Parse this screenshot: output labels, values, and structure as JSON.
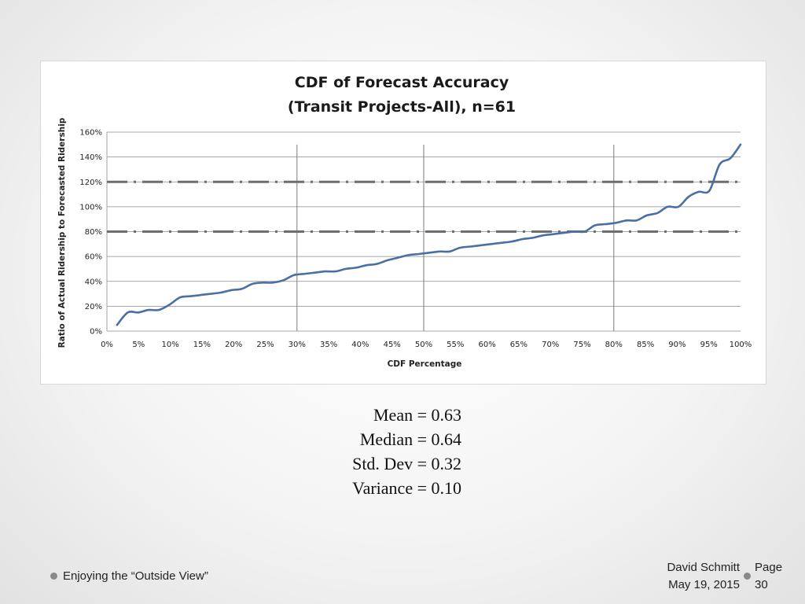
{
  "chart_data": {
    "type": "line",
    "title": [
      "CDF of Forecast Accuracy",
      "(Transit Projects-All), n=61"
    ],
    "xlabel": "CDF Percentage",
    "ylabel": "Ratio of Actual Ridership to Forecasted Ridership",
    "xlim": [
      0,
      100
    ],
    "ylim": [
      0,
      160
    ],
    "x_ticks": [
      "0%",
      "5%",
      "10%",
      "15%",
      "20%",
      "25%",
      "30%",
      "35%",
      "40%",
      "45%",
      "50%",
      "55%",
      "60%",
      "65%",
      "70%",
      "75%",
      "80%",
      "85%",
      "90%",
      "95%",
      "100%"
    ],
    "y_ticks": [
      "0%",
      "20%",
      "40%",
      "60%",
      "80%",
      "100%",
      "120%",
      "140%",
      "160%"
    ],
    "grid": true,
    "reference_lines": {
      "vertical": [
        30,
        50,
        80
      ],
      "horizontal_dashed": [
        80,
        120
      ]
    },
    "series": [
      {
        "name": "CDF",
        "color": "#4a6fa5",
        "x": [
          1.6,
          3.3,
          4.9,
          6.6,
          8.2,
          9.8,
          11.5,
          13.1,
          14.8,
          16.4,
          18.0,
          19.7,
          21.3,
          23.0,
          24.6,
          26.2,
          27.9,
          29.5,
          31.1,
          32.8,
          34.4,
          36.1,
          37.7,
          39.3,
          41.0,
          42.6,
          44.3,
          45.9,
          47.5,
          49.2,
          50.8,
          52.5,
          54.1,
          55.7,
          57.4,
          59.0,
          60.7,
          62.3,
          63.9,
          65.6,
          67.2,
          68.9,
          70.5,
          72.1,
          73.8,
          75.4,
          77.0,
          78.7,
          80.3,
          82.0,
          83.6,
          85.2,
          86.9,
          88.5,
          90.2,
          91.8,
          93.4,
          95.1,
          96.7,
          98.4,
          100.0
        ],
        "values": [
          5,
          15,
          15,
          17,
          17,
          21,
          27,
          28,
          29,
          30,
          31,
          33,
          34,
          38,
          39,
          39,
          41,
          45,
          46,
          47,
          48,
          48,
          50,
          51,
          53,
          54,
          57,
          59,
          61,
          62,
          63,
          64,
          64,
          67,
          68,
          69,
          70,
          71,
          72,
          74,
          75,
          77,
          78,
          79,
          80,
          80,
          85,
          86,
          87,
          89,
          89,
          93,
          95,
          100,
          100,
          108,
          112,
          113,
          134,
          139,
          150
        ]
      }
    ]
  },
  "stats": {
    "mean": "Mean = 0.63",
    "median": "Median = 0.64",
    "std_dev": "Std. Dev = 0.32",
    "variance": "Variance = 0.10"
  },
  "footer": {
    "left_text": "Enjoying the “Outside View”",
    "author": "David Schmitt",
    "date": "May 19, 2015",
    "page_label": "Page",
    "page_number": "30"
  },
  "colors": {
    "line": "#4a6fa5",
    "grid": "#8c8c8c",
    "dashed": "#6e6e6e"
  }
}
